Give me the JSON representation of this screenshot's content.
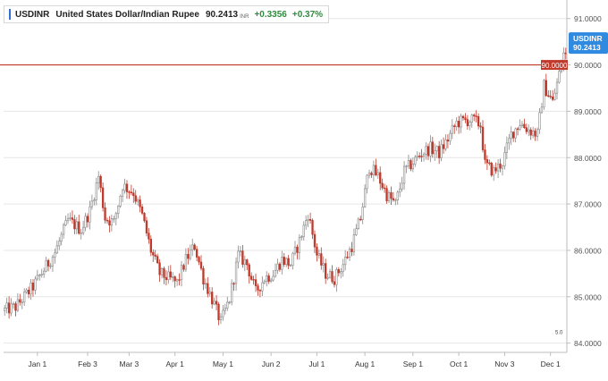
{
  "header": {
    "symbol": "USDINR",
    "name": "United States Dollar/Indian Rupee",
    "price": "90.2413",
    "unit": "INR",
    "change": "+0.3356",
    "change_pct": "+0.37%"
  },
  "current_label": {
    "symbol": "USDINR",
    "value": "90.2413"
  },
  "level_line": {
    "value": 90.0,
    "label": "90.0000"
  },
  "small_marker": "5.0",
  "colors": {
    "up": "#888888",
    "down": "#c0392b",
    "level": "#c0392b",
    "current": "#2f8ae0",
    "grid": "#e6e6e6"
  },
  "chart_data": {
    "type": "candlestick",
    "title": "",
    "xlabel": "",
    "ylabel": "",
    "ylim": [
      83.8,
      91.4
    ],
    "y_ticks": [
      "84.0000",
      "85.0000",
      "86.0000",
      "87.0000",
      "88.0000",
      "89.0000",
      "90.0000",
      "91.0000"
    ],
    "y_tick_values": [
      84,
      85,
      86,
      87,
      88,
      89,
      90,
      91
    ],
    "x_ticks": [
      "Jan 1",
      "Feb 3",
      "Mar 3",
      "Apr 1",
      "May 1",
      "Jun 2",
      "Jul 1",
      "Aug 1",
      "Sep 1",
      "Oct 1",
      "Nov 3",
      "Dec 1"
    ],
    "x_tick_index": [
      15,
      38,
      57,
      78,
      100,
      122,
      143,
      165,
      187,
      208,
      229,
      250
    ],
    "trend": [
      [
        0,
        84.7
      ],
      [
        6,
        84.78
      ],
      [
        14,
        85.22
      ],
      [
        24,
        85.95
      ],
      [
        30,
        86.65
      ],
      [
        36,
        86.45
      ],
      [
        40,
        86.85
      ],
      [
        44,
        87.6
      ],
      [
        47,
        86.7
      ],
      [
        51,
        86.6
      ],
      [
        55,
        87.4
      ],
      [
        60,
        87.25
      ],
      [
        64,
        86.75
      ],
      [
        68,
        86.0
      ],
      [
        72,
        85.5
      ],
      [
        76,
        85.4
      ],
      [
        80,
        85.3
      ],
      [
        84,
        85.8
      ],
      [
        88,
        86.1
      ],
      [
        92,
        85.4
      ],
      [
        96,
        84.95
      ],
      [
        100,
        84.45
      ],
      [
        104,
        84.95
      ],
      [
        108,
        85.9
      ],
      [
        112,
        85.7
      ],
      [
        116,
        85.1
      ],
      [
        120,
        85.4
      ],
      [
        124,
        85.5
      ],
      [
        128,
        85.8
      ],
      [
        132,
        85.7
      ],
      [
        136,
        86.2
      ],
      [
        140,
        86.8
      ],
      [
        144,
        85.9
      ],
      [
        148,
        85.5
      ],
      [
        152,
        85.4
      ],
      [
        156,
        85.7
      ],
      [
        160,
        86.1
      ],
      [
        164,
        86.7
      ],
      [
        168,
        87.8
      ],
      [
        172,
        87.6
      ],
      [
        176,
        87.2
      ],
      [
        180,
        87.0
      ],
      [
        184,
        87.7
      ],
      [
        188,
        87.9
      ],
      [
        192,
        88.1
      ],
      [
        196,
        88.2
      ],
      [
        200,
        88.1
      ],
      [
        204,
        88.4
      ],
      [
        208,
        88.75
      ],
      [
        212,
        88.8
      ],
      [
        216,
        88.8
      ],
      [
        219,
        88.7
      ],
      [
        221,
        87.85
      ],
      [
        225,
        87.7
      ],
      [
        229,
        87.9
      ],
      [
        233,
        88.5
      ],
      [
        237,
        88.75
      ],
      [
        241,
        88.6
      ],
      [
        245,
        88.5
      ],
      [
        248,
        89.55
      ],
      [
        252,
        89.2
      ],
      [
        255,
        89.8
      ],
      [
        257,
        90.24
      ]
    ],
    "last_value": 90.2413
  }
}
